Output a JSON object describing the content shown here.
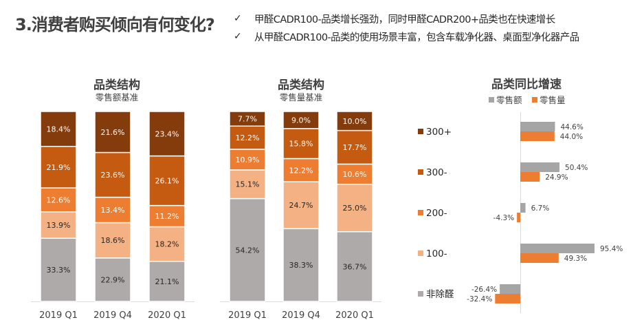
{
  "header": {
    "title": "3.消费者购买倾向有何变化?",
    "bullets": [
      {
        "icon": "check-icon",
        "glyph": "✓",
        "text": "甲醛CADR100-品类增长强劲，同时甲醛CADR200+品类也在快速增长"
      },
      {
        "icon": "check-icon",
        "glyph": "✓",
        "text": "从甲醛CADR100-品类的使用场景丰富，包含车载净化器、桌面型净化器产品"
      }
    ]
  },
  "colors": {
    "300+": "#843C0C",
    "300-": "#C55A11",
    "200-": "#ED7D31",
    "100-": "#F4B183",
    "非除醛": "#AEAAAA",
    "retail_value": "#A5A5A5",
    "retail_volume": "#ED7D31"
  },
  "chart_data": [
    {
      "type": "bar",
      "stacked": true,
      "title": "品类结构",
      "subtitle": "零售额基准",
      "categories": [
        "2019 Q1",
        "2019 Q4",
        "2020 Q1"
      ],
      "unit": "%",
      "ylim": [
        0,
        100
      ],
      "series": [
        {
          "name": "非除醛",
          "values": [
            33.3,
            22.9,
            21.1
          ]
        },
        {
          "name": "100-",
          "values": [
            13.9,
            18.6,
            18.2
          ]
        },
        {
          "name": "200-",
          "values": [
            12.6,
            13.4,
            11.2
          ]
        },
        {
          "name": "300-",
          "values": [
            21.9,
            23.6,
            26.1
          ]
        },
        {
          "name": "300+",
          "values": [
            18.4,
            21.6,
            23.4
          ]
        }
      ],
      "data_labels": true,
      "legend": "none",
      "grid": false
    },
    {
      "type": "bar",
      "stacked": true,
      "title": "品类结构",
      "subtitle": "零售量基准",
      "categories": [
        "2019 Q1",
        "2019 Q4",
        "2020 Q1"
      ],
      "unit": "%",
      "ylim": [
        0,
        100
      ],
      "series": [
        {
          "name": "非除醛",
          "values": [
            54.2,
            38.3,
            36.7
          ]
        },
        {
          "name": "100-",
          "values": [
            15.1,
            24.7,
            25.0
          ]
        },
        {
          "name": "200-",
          "values": [
            10.9,
            12.2,
            10.6
          ]
        },
        {
          "name": "300-",
          "values": [
            12.2,
            15.8,
            17.7
          ]
        },
        {
          "name": "300+",
          "values": [
            7.7,
            9.0,
            10.0
          ]
        }
      ],
      "data_labels": true,
      "legend": "none",
      "grid": false
    },
    {
      "type": "bar",
      "orientation": "horizontal",
      "title": "品类同比增速",
      "categories": [
        "300+",
        "300-",
        "200-",
        "100-",
        "非除醛"
      ],
      "category_labels": [
        "300+",
        "300-",
        "200-",
        "100-",
        "非除醛"
      ],
      "unit": "%",
      "series": [
        {
          "name": "零售额",
          "values": [
            44.6,
            50.4,
            6.7,
            95.4,
            -26.4
          ]
        },
        {
          "name": "零售量",
          "values": [
            44.0,
            24.9,
            -4.3,
            49.3,
            -32.4
          ]
        }
      ],
      "data_labels": true,
      "legend": "top",
      "grid": false
    }
  ]
}
